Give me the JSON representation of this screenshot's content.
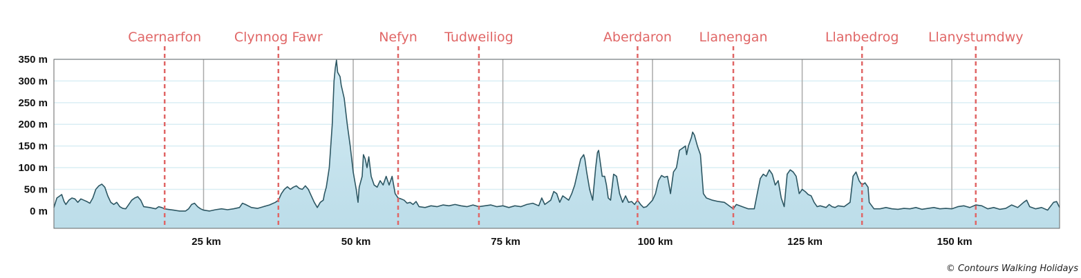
{
  "chart_data": {
    "type": "area",
    "title": "",
    "xlabel": "",
    "ylabel": "",
    "x_unit": "km",
    "y_unit": "m",
    "xlim": [
      0,
      168
    ],
    "ylim": [
      -40,
      350
    ],
    "y_ticks": [
      0,
      50,
      100,
      150,
      200,
      250,
      300,
      350
    ],
    "y_tick_labels": [
      "0 m",
      "50 m",
      "100 m",
      "150 m",
      "200 m",
      "250 m",
      "300 m",
      "350 m"
    ],
    "x_ticks": [
      25,
      50,
      75,
      100,
      125,
      150
    ],
    "x_tick_labels": [
      "25 km",
      "50 km",
      "75 km",
      "100 km",
      "125 km",
      "150 km"
    ],
    "grid": true,
    "colors": {
      "fill": "#bcdde9",
      "line": "#2c5662",
      "marker": "#e06666",
      "vgrid": "#aaaaaa",
      "hgrid": "#d9eef4"
    },
    "towns": [
      {
        "name": "Caernarfon",
        "km": 18.5
      },
      {
        "name": "Clynnog Fawr",
        "km": 37.5
      },
      {
        "name": "Nefyn",
        "km": 57.5
      },
      {
        "name": "Tudweiliog",
        "km": 71
      },
      {
        "name": "Aberdaron",
        "km": 97.5
      },
      {
        "name": "Llanengan",
        "km": 113.5
      },
      {
        "name": "Llanbedrog",
        "km": 135
      },
      {
        "name": "Llanystumdwy",
        "km": 154
      }
    ],
    "series": [
      {
        "points": [
          [
            0,
            8
          ],
          [
            0.5,
            30
          ],
          [
            1,
            35
          ],
          [
            1.3,
            38
          ],
          [
            1.7,
            22
          ],
          [
            2,
            15
          ],
          [
            2.5,
            25
          ],
          [
            3,
            30
          ],
          [
            3.5,
            28
          ],
          [
            4,
            20
          ],
          [
            4.5,
            28
          ],
          [
            5,
            25
          ],
          [
            5.5,
            22
          ],
          [
            6,
            18
          ],
          [
            6.5,
            30
          ],
          [
            7,
            50
          ],
          [
            7.5,
            58
          ],
          [
            8,
            62
          ],
          [
            8.5,
            55
          ],
          [
            9,
            35
          ],
          [
            9.5,
            20
          ],
          [
            10,
            15
          ],
          [
            10.5,
            20
          ],
          [
            11,
            10
          ],
          [
            11.5,
            6
          ],
          [
            12,
            5
          ],
          [
            12.5,
            15
          ],
          [
            13,
            25
          ],
          [
            13.5,
            30
          ],
          [
            14,
            33
          ],
          [
            14.5,
            25
          ],
          [
            15,
            10
          ],
          [
            16,
            8
          ],
          [
            17,
            5
          ],
          [
            17.5,
            10
          ],
          [
            18,
            8
          ],
          [
            18.5,
            5
          ],
          [
            19,
            4
          ],
          [
            20,
            2
          ],
          [
            21,
            0
          ],
          [
            22,
            0
          ],
          [
            22.5,
            5
          ],
          [
            23,
            15
          ],
          [
            23.5,
            18
          ],
          [
            24,
            10
          ],
          [
            24.5,
            5
          ],
          [
            25,
            2
          ],
          [
            26,
            0
          ],
          [
            27,
            3
          ],
          [
            28,
            5
          ],
          [
            29,
            3
          ],
          [
            30,
            5
          ],
          [
            31,
            8
          ],
          [
            31.5,
            18
          ],
          [
            32,
            15
          ],
          [
            33,
            8
          ],
          [
            34,
            6
          ],
          [
            35,
            10
          ],
          [
            36,
            14
          ],
          [
            37,
            20
          ],
          [
            37.5,
            25
          ],
          [
            38,
            40
          ],
          [
            38.5,
            50
          ],
          [
            39,
            56
          ],
          [
            39.5,
            50
          ],
          [
            40,
            55
          ],
          [
            40.5,
            58
          ],
          [
            41,
            52
          ],
          [
            41.5,
            50
          ],
          [
            42,
            58
          ],
          [
            42.5,
            50
          ],
          [
            43,
            35
          ],
          [
            43.5,
            20
          ],
          [
            44,
            8
          ],
          [
            44.5,
            20
          ],
          [
            45,
            25
          ],
          [
            45.2,
            40
          ],
          [
            45.5,
            55
          ],
          [
            46,
            100
          ],
          [
            46.5,
            200
          ],
          [
            46.8,
            300
          ],
          [
            47,
            330
          ],
          [
            47.2,
            348
          ],
          [
            47.4,
            320
          ],
          [
            47.8,
            310
          ],
          [
            48,
            290
          ],
          [
            48.5,
            260
          ],
          [
            49,
            200
          ],
          [
            49.5,
            150
          ],
          [
            50,
            90
          ],
          [
            50.5,
            50
          ],
          [
            50.8,
            20
          ],
          [
            51,
            55
          ],
          [
            51.5,
            80
          ],
          [
            51.7,
            130
          ],
          [
            52,
            120
          ],
          [
            52.3,
            100
          ],
          [
            52.6,
            125
          ],
          [
            53,
            80
          ],
          [
            53.5,
            60
          ],
          [
            54,
            55
          ],
          [
            54.5,
            70
          ],
          [
            55,
            60
          ],
          [
            55.5,
            80
          ],
          [
            56,
            60
          ],
          [
            56.5,
            80
          ],
          [
            57,
            40
          ],
          [
            57.5,
            30
          ],
          [
            58,
            28
          ],
          [
            58.5,
            25
          ],
          [
            59,
            18
          ],
          [
            59.5,
            20
          ],
          [
            60,
            15
          ],
          [
            60.5,
            22
          ],
          [
            61,
            10
          ],
          [
            62,
            8
          ],
          [
            63,
            12
          ],
          [
            64,
            10
          ],
          [
            65,
            14
          ],
          [
            66,
            12
          ],
          [
            67,
            15
          ],
          [
            68,
            12
          ],
          [
            69,
            10
          ],
          [
            70,
            14
          ],
          [
            71,
            10
          ],
          [
            72,
            12
          ],
          [
            73,
            14
          ],
          [
            74,
            10
          ],
          [
            75,
            12
          ],
          [
            76,
            8
          ],
          [
            77,
            12
          ],
          [
            78,
            10
          ],
          [
            79,
            15
          ],
          [
            80,
            18
          ],
          [
            81,
            12
          ],
          [
            81.5,
            30
          ],
          [
            82,
            15
          ],
          [
            83,
            25
          ],
          [
            83.5,
            45
          ],
          [
            84,
            40
          ],
          [
            84.5,
            20
          ],
          [
            85,
            35
          ],
          [
            85.5,
            30
          ],
          [
            86,
            25
          ],
          [
            86.5,
            40
          ],
          [
            87,
            60
          ],
          [
            87.5,
            90
          ],
          [
            88,
            120
          ],
          [
            88.5,
            130
          ],
          [
            88.7,
            120
          ],
          [
            89,
            90
          ],
          [
            89.5,
            50
          ],
          [
            90,
            25
          ],
          [
            90.5,
            100
          ],
          [
            90.8,
            135
          ],
          [
            91,
            140
          ],
          [
            91.3,
            110
          ],
          [
            91.6,
            80
          ],
          [
            92,
            80
          ],
          [
            92.3,
            60
          ],
          [
            92.6,
            30
          ],
          [
            93,
            25
          ],
          [
            93.5,
            85
          ],
          [
            94,
            80
          ],
          [
            94.5,
            40
          ],
          [
            95,
            20
          ],
          [
            95.5,
            35
          ],
          [
            96,
            20
          ],
          [
            96.5,
            22
          ],
          [
            97,
            15
          ],
          [
            97.5,
            25
          ],
          [
            98,
            15
          ],
          [
            98.5,
            8
          ],
          [
            99,
            10
          ],
          [
            100,
            25
          ],
          [
            100.5,
            40
          ],
          [
            101,
            70
          ],
          [
            101.5,
            82
          ],
          [
            102,
            78
          ],
          [
            102.5,
            80
          ],
          [
            103,
            40
          ],
          [
            103.5,
            90
          ],
          [
            104,
            100
          ],
          [
            104.5,
            140
          ],
          [
            105,
            145
          ],
          [
            105.5,
            150
          ],
          [
            105.7,
            130
          ],
          [
            106,
            150
          ],
          [
            106.5,
            170
          ],
          [
            106.7,
            182
          ],
          [
            107,
            175
          ],
          [
            107.5,
            150
          ],
          [
            108,
            130
          ],
          [
            108.5,
            40
          ],
          [
            109,
            30
          ],
          [
            110,
            25
          ],
          [
            111,
            22
          ],
          [
            112,
            20
          ],
          [
            112.5,
            15
          ],
          [
            113,
            10
          ],
          [
            113.5,
            5
          ],
          [
            114,
            15
          ],
          [
            115,
            10
          ],
          [
            116,
            5
          ],
          [
            117,
            5
          ],
          [
            117.5,
            40
          ],
          [
            118,
            75
          ],
          [
            118.5,
            85
          ],
          [
            119,
            80
          ],
          [
            119.5,
            95
          ],
          [
            120,
            85
          ],
          [
            120.5,
            60
          ],
          [
            121,
            70
          ],
          [
            121.5,
            30
          ],
          [
            122,
            10
          ],
          [
            122.5,
            85
          ],
          [
            123,
            95
          ],
          [
            123.5,
            90
          ],
          [
            124,
            80
          ],
          [
            124.5,
            40
          ],
          [
            125,
            50
          ],
          [
            125.5,
            45
          ],
          [
            126,
            38
          ],
          [
            126.5,
            35
          ],
          [
            127,
            20
          ],
          [
            127.5,
            10
          ],
          [
            128,
            12
          ],
          [
            129,
            8
          ],
          [
            129.5,
            15
          ],
          [
            130,
            10
          ],
          [
            130.5,
            8
          ],
          [
            131,
            12
          ],
          [
            132,
            10
          ],
          [
            133,
            20
          ],
          [
            133.5,
            80
          ],
          [
            134,
            90
          ],
          [
            134.5,
            70
          ],
          [
            135,
            60
          ],
          [
            135.5,
            65
          ],
          [
            136,
            55
          ],
          [
            136.2,
            20
          ],
          [
            137,
            5
          ],
          [
            138,
            5
          ],
          [
            139,
            8
          ],
          [
            140,
            5
          ],
          [
            141,
            4
          ],
          [
            142,
            6
          ],
          [
            143,
            5
          ],
          [
            144,
            8
          ],
          [
            145,
            4
          ],
          [
            146,
            6
          ],
          [
            147,
            8
          ],
          [
            148,
            5
          ],
          [
            149,
            6
          ],
          [
            150,
            5
          ],
          [
            151,
            10
          ],
          [
            152,
            12
          ],
          [
            153,
            8
          ],
          [
            154,
            14
          ],
          [
            155,
            12
          ],
          [
            156,
            5
          ],
          [
            157,
            8
          ],
          [
            158,
            4
          ],
          [
            159,
            6
          ],
          [
            160,
            14
          ],
          [
            161,
            8
          ],
          [
            162,
            20
          ],
          [
            162.5,
            25
          ],
          [
            163,
            10
          ],
          [
            164,
            5
          ],
          [
            165,
            8
          ],
          [
            166,
            2
          ],
          [
            167,
            20
          ],
          [
            167.5,
            22
          ],
          [
            168,
            8
          ]
        ]
      }
    ]
  },
  "footer": {
    "copyright": "© Contours Walking Holidays"
  }
}
